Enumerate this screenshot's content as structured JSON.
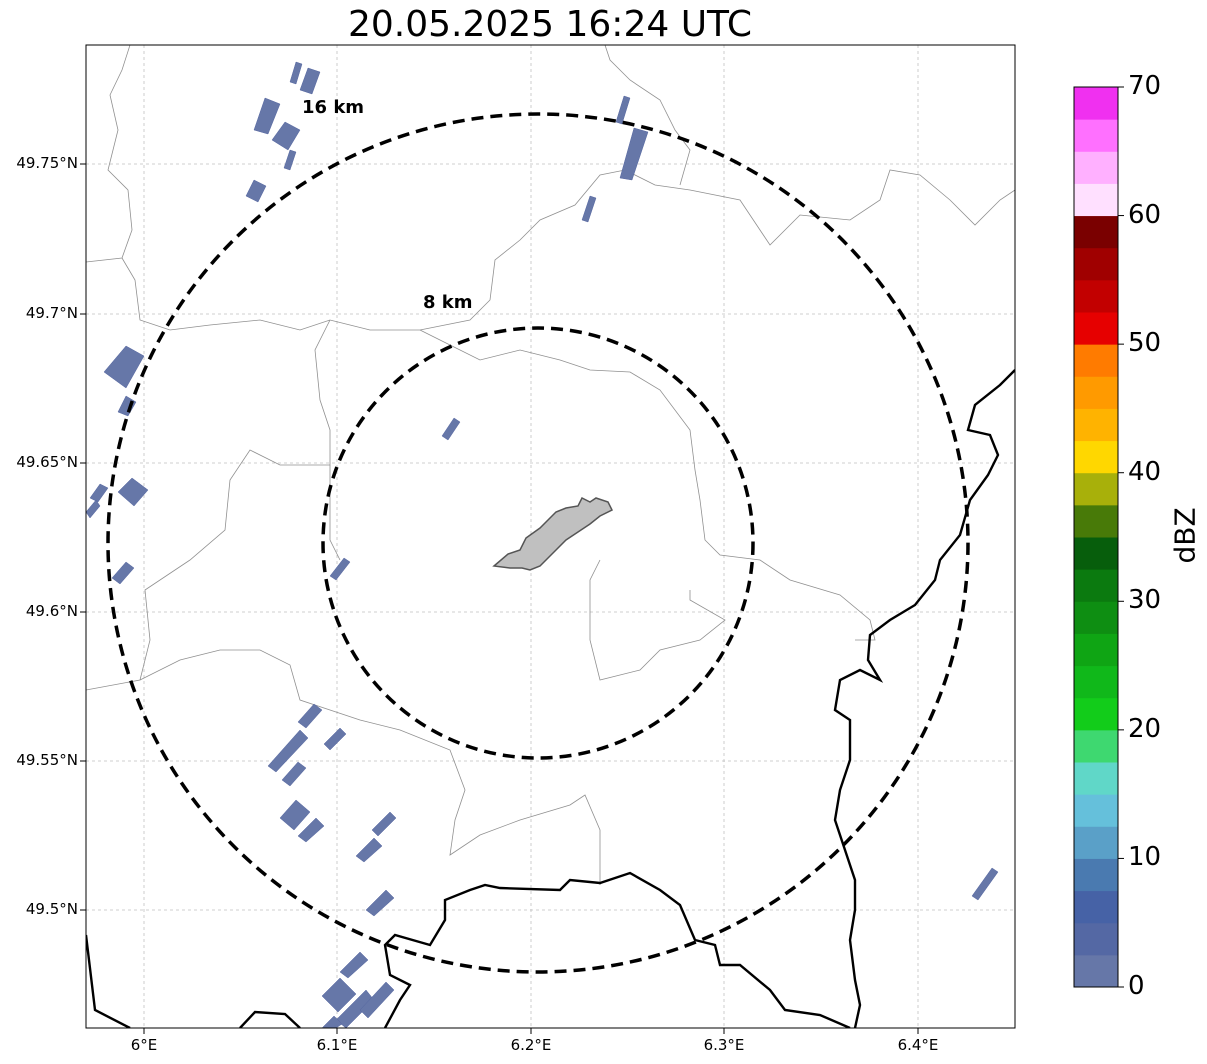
{
  "title": "20.05.2025 16:24 UTC",
  "map": {
    "lat_ticks": [
      "49.75°N",
      "49.7°N",
      "49.65°N",
      "49.6°N",
      "49.55°N",
      "49.5°N"
    ],
    "lon_ticks": [
      "6°E",
      "6.1°E",
      "6.2°E",
      "6.3°E",
      "6.4°E"
    ],
    "rings": [
      {
        "label": "8 km"
      },
      {
        "label": "16 km"
      }
    ],
    "radar_echo_color": "#6677a8",
    "urban_area_color": "#c0c0c0"
  },
  "colorbar": {
    "label": "dBZ",
    "ticks": [
      "0",
      "10",
      "20",
      "30",
      "40",
      "50",
      "60",
      "70"
    ],
    "colors": [
      "#6677a8",
      "#5468a4",
      "#4662a6",
      "#4a7ab0",
      "#5aa0c8",
      "#65c0db",
      "#60d7c8",
      "#3ed870",
      "#12cc1a",
      "#10b81a",
      "#0fa514",
      "#0e8e12",
      "#0b7a0f",
      "#075e0c",
      "#487a08",
      "#a8b00a",
      "#ffd700",
      "#ffb300",
      "#ff9a00",
      "#ff7b00",
      "#e60000",
      "#c20000",
      "#a00000",
      "#7a0000",
      "#ffe0ff",
      "#ffb0ff",
      "#ff70ff",
      "#f030f0"
    ]
  }
}
